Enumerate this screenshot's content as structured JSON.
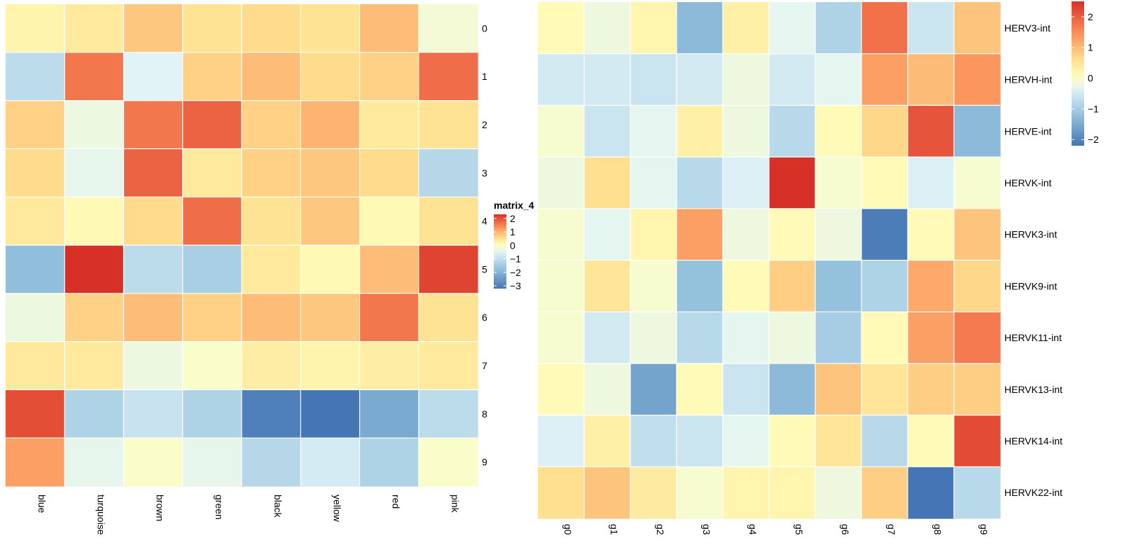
{
  "chart_data": [
    {
      "type": "heatmap",
      "x_labels": [
        "blue",
        "turquoise",
        "brown",
        "green",
        "black",
        "yellow",
        "red",
        "pink"
      ],
      "y_labels": [
        "0",
        "1",
        "2",
        "3",
        "4",
        "5",
        "6",
        "7",
        "8",
        "9"
      ],
      "values": [
        [
          0.2,
          0.4,
          0.8,
          0.5,
          0.6,
          0.5,
          0.9,
          -0.2
        ],
        [
          -1.1,
          1.6,
          -0.5,
          0.7,
          0.9,
          0.6,
          0.7,
          1.7
        ],
        [
          0.7,
          -0.3,
          1.6,
          1.8,
          0.7,
          1.0,
          0.4,
          0.5
        ],
        [
          0.6,
          -0.4,
          1.8,
          0.4,
          0.7,
          0.8,
          0.6,
          -1.2
        ],
        [
          0.4,
          0.1,
          0.6,
          1.7,
          0.5,
          0.8,
          0.1,
          0.5
        ],
        [
          -1.8,
          2.3,
          -1.1,
          -1.4,
          0.4,
          0.1,
          0.9,
          2.1
        ],
        [
          -0.3,
          0.7,
          0.9,
          0.7,
          0.9,
          0.8,
          1.6,
          0.5
        ],
        [
          0.4,
          0.4,
          -0.3,
          -0.1,
          0.3,
          0.2,
          0.3,
          0.4
        ],
        [
          2.0,
          -1.3,
          -0.9,
          -1.3,
          -3.0,
          -3.2,
          -2.2,
          -1.1
        ],
        [
          1.2,
          -0.4,
          -0.1,
          -0.4,
          -1.2,
          -0.7,
          -1.3,
          -0.1
        ]
      ],
      "legend": {
        "title": "matrix_4",
        "ticks": [
          2,
          1,
          0,
          -1,
          -2,
          -3
        ],
        "range": [
          -3.2,
          2.3
        ]
      },
      "colors": {
        "low": "#4575b4",
        "mid": "#ffffbf",
        "high": "#d73027"
      }
    },
    {
      "type": "heatmap",
      "x_labels": [
        "g0",
        "g1",
        "g2",
        "g3",
        "g4",
        "g5",
        "g6",
        "g7",
        "g8",
        "g9"
      ],
      "y_labels": [
        "HERV3-int",
        "HERVH-int",
        "HERVE-int",
        "HERVK-int",
        "HERVK3-int",
        "HERVK9-int",
        "HERVK11-int",
        "HERVK13-int",
        "HERVK14-int",
        "HERVK22-int"
      ],
      "values": [
        [
          0.1,
          -0.2,
          0.2,
          -1.3,
          0.3,
          -0.3,
          -0.9,
          1.8,
          -0.6,
          0.9
        ],
        [
          -0.5,
          -0.5,
          -0.6,
          -0.5,
          -0.2,
          -0.5,
          -0.3,
          1.3,
          1.0,
          1.4
        ],
        [
          -0.1,
          -0.6,
          -0.3,
          0.3,
          -0.2,
          -0.8,
          0.1,
          0.7,
          2.1,
          -1.3
        ],
        [
          -0.2,
          0.6,
          -0.3,
          -0.8,
          -0.4,
          2.5,
          -0.1,
          0.1,
          -0.4,
          -0.1
        ],
        [
          -0.1,
          -0.3,
          0.2,
          1.3,
          -0.2,
          0.1,
          -0.2,
          -2.1,
          0.1,
          0.9
        ],
        [
          -0.1,
          0.5,
          -0.1,
          -1.2,
          0.1,
          0.8,
          -1.2,
          -0.9,
          1.2,
          0.7
        ],
        [
          -0.1,
          -0.5,
          -0.2,
          -0.8,
          -0.3,
          -0.2,
          -1.0,
          0.1,
          1.3,
          1.7
        ],
        [
          0.1,
          -0.2,
          -1.6,
          0.1,
          -0.6,
          -1.3,
          0.9,
          0.5,
          0.8,
          0.8
        ],
        [
          -0.4,
          0.3,
          -0.7,
          -0.6,
          -0.3,
          0.1,
          0.5,
          -0.8,
          0.1,
          2.2
        ],
        [
          0.6,
          0.9,
          0.4,
          -0.1,
          0.2,
          0.2,
          -0.2,
          0.8,
          -2.2,
          -0.8
        ]
      ],
      "legend": {
        "title": "",
        "ticks": [
          2,
          1,
          0,
          -1,
          -2
        ],
        "range": [
          -2.2,
          2.5
        ]
      },
      "colors": {
        "low": "#4575b4",
        "mid": "#ffffbf",
        "high": "#d73027"
      }
    }
  ]
}
